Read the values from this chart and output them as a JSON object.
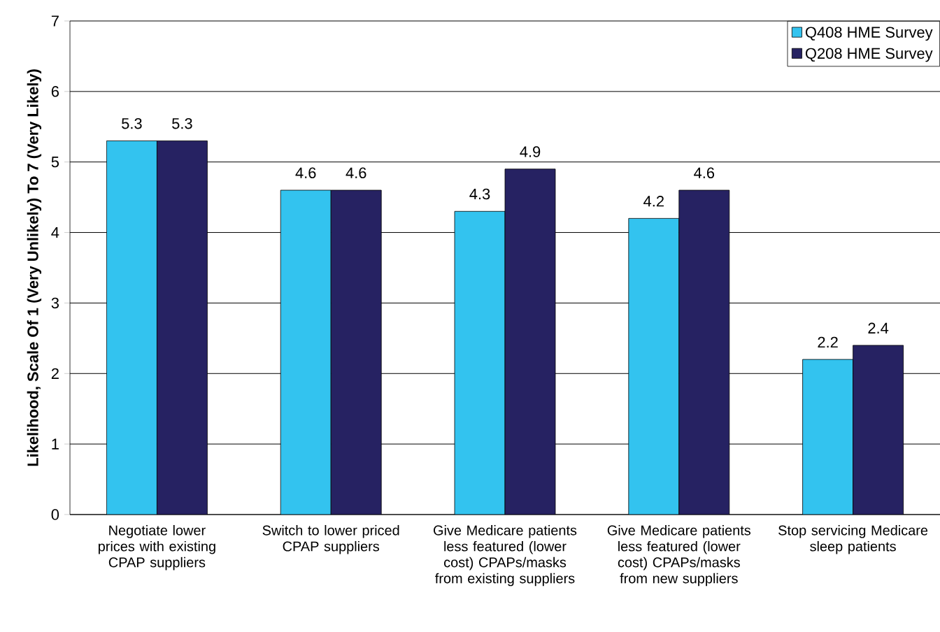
{
  "chart_data": {
    "type": "bar",
    "ylabel": "Likelihood, Scale Of 1 (Very Unlikely) To 7 (Very Likely)",
    "categories": [
      "Negotiate lower prices with existing CPAP suppliers",
      "Switch to lower priced CPAP suppliers",
      "Give Medicare patients less featured (lower cost) CPAPs/masks from existing suppliers",
      "Give Medicare patients less featured (lower cost) CPAPs/masks from new suppliers",
      "Stop servicing Medicare sleep patients"
    ],
    "series": [
      {
        "name": "Q408 HME Survey",
        "color": "#33c3ef",
        "values": [
          5.3,
          4.6,
          4.3,
          4.2,
          2.2
        ]
      },
      {
        "name": "Q208 HME Survey",
        "color": "#262262",
        "values": [
          5.3,
          4.6,
          4.9,
          4.6,
          2.4
        ]
      }
    ],
    "ylim": [
      0,
      7
    ],
    "yticks": [
      0,
      1,
      2,
      3,
      4,
      5,
      6,
      7
    ],
    "grid": "y",
    "legend": "top right",
    "data_labels": true
  }
}
